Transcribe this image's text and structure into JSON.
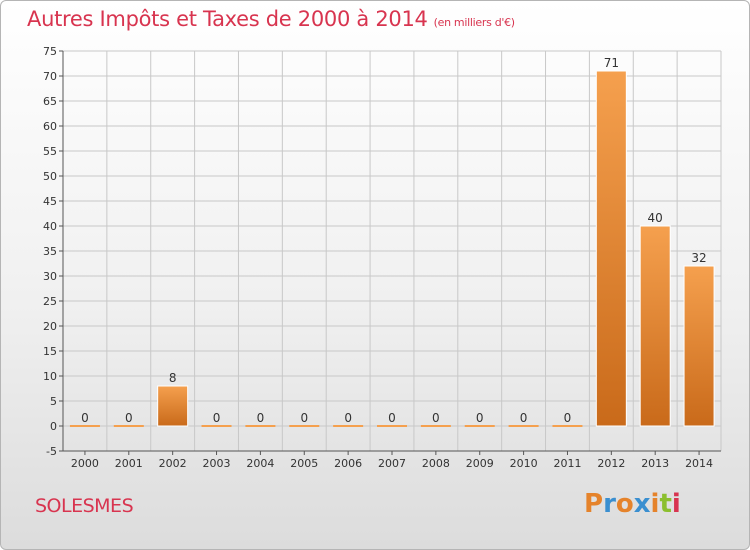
{
  "title": "Autres Impôts et Taxes de 2000 à 2014",
  "subtitle": "(en milliers d'€)",
  "city": "SOLESMES",
  "logo": {
    "text": "Proxiti",
    "letters": [
      "P",
      "r",
      "o",
      "x",
      "i",
      "t",
      "i"
    ],
    "colors": [
      "#e5832b",
      "#3a8fd0",
      "#e5832b",
      "#3a8fd0",
      "#e5832b",
      "#8cbf2f",
      "#d8344f"
    ]
  },
  "colors": {
    "title": "#d8344f",
    "bar_top": "#f5a04e",
    "bar_bottom": "#c96a1a",
    "grid": "#c8c8c8"
  },
  "chart_data": {
    "type": "bar",
    "categories": [
      "2000",
      "2001",
      "2002",
      "2003",
      "2004",
      "2005",
      "2006",
      "2007",
      "2008",
      "2009",
      "2010",
      "2011",
      "2012",
      "2013",
      "2014"
    ],
    "values": [
      0,
      0,
      8,
      0,
      0,
      0,
      0,
      0,
      0,
      0,
      0,
      0,
      71,
      40,
      32
    ],
    "data_labels": [
      "0",
      "0",
      "8",
      "0",
      "0",
      "0",
      "0",
      "0",
      "0",
      "0",
      "0",
      "0",
      "71",
      "40",
      "32"
    ],
    "ylim": [
      -5,
      75
    ],
    "yticks": [
      -5,
      0,
      5,
      10,
      15,
      20,
      25,
      30,
      35,
      40,
      45,
      50,
      55,
      60,
      65,
      70,
      75
    ],
    "grid": true,
    "xlabel": "",
    "ylabel": ""
  }
}
